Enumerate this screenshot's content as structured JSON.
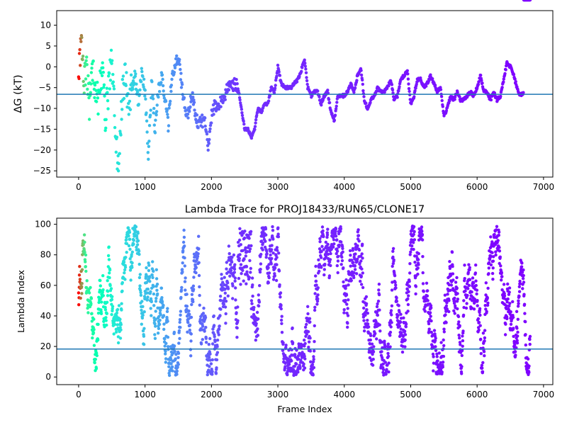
{
  "chart_data": [
    {
      "type": "scatter",
      "title": "",
      "xlabel": "",
      "ylabel": "ΔG (kT)",
      "xlim": [
        -330,
        7140
      ],
      "ylim": [
        -26.5,
        13.5
      ],
      "xticks": [
        "0",
        "1000",
        "2000",
        "3000",
        "4000",
        "5000",
        "6000",
        "7000"
      ],
      "yticks": [
        "10",
        "5",
        "0",
        "−5",
        "−10",
        "−15",
        "−20",
        "−25"
      ],
      "xtick_values": [
        0,
        1000,
        2000,
        3000,
        4000,
        5000,
        6000,
        7000
      ],
      "ytick_values": [
        10,
        5,
        0,
        -5,
        -10,
        -15,
        -20,
        -25
      ],
      "hline": -6.6,
      "hline_color": "#1f77b4",
      "colormap": "rainbow (red at early frames → purple at late frames)",
      "grid": false,
      "series": [
        {
          "trace_x": [
            0,
            40,
            80,
            120,
            160,
            200,
            250,
            300,
            350,
            400,
            450,
            500,
            550,
            600,
            650,
            700,
            750,
            800,
            850,
            900,
            950,
            1000,
            1050,
            1100,
            1150,
            1200,
            1250,
            1300,
            1350,
            1400,
            1450,
            1500,
            1550,
            1600,
            1650,
            1700,
            1750,
            1800,
            1850,
            1900,
            1950,
            2000,
            2050,
            2100,
            2150,
            2200,
            2250,
            2300,
            2350,
            2400,
            2450,
            2500,
            2550,
            2600,
            2650,
            2700,
            2750,
            2800,
            2850,
            2900,
            2950,
            3000,
            3050,
            3100,
            3150,
            3200,
            3250,
            3300,
            3350,
            3400,
            3450,
            3500,
            3550,
            3600,
            3650,
            3700,
            3750,
            3800,
            3850,
            3900,
            3950,
            4000,
            4050,
            4100,
            4150,
            4200,
            4250,
            4300,
            4350,
            4400,
            4450,
            4500,
            4550,
            4600,
            4650,
            4700,
            4750,
            4800,
            4850,
            4900,
            4950,
            5000,
            5050,
            5100,
            5150,
            5200,
            5250,
            5300,
            5350,
            5400,
            5450,
            5500,
            5550,
            5600,
            5650,
            5700,
            5750,
            5800,
            5850,
            5900,
            5950,
            6000,
            6050,
            6100,
            6150,
            6200,
            6250,
            6300,
            6350,
            6400,
            6450,
            6500,
            6550,
            6600,
            6650,
            6700,
            6750,
            6800
          ],
          "trace_y": [
            0,
            5,
            -3,
            0,
            -10,
            2,
            -5,
            -8,
            0,
            -12,
            -6,
            3,
            -15,
            -24,
            -8,
            -2,
            -10,
            -5,
            -2,
            -9,
            -1,
            -6,
            -22,
            -4,
            -15,
            -6,
            -2,
            -8,
            -14,
            -3,
            0,
            3,
            -4,
            -10,
            -12,
            -6,
            -11,
            -14,
            -13,
            -13,
            -19,
            -12,
            -9,
            -10,
            -8,
            -7,
            -5,
            -5,
            -4,
            -5,
            -10,
            -15,
            -15,
            -17,
            -15,
            -10,
            -11,
            -9,
            -9,
            -5,
            -6,
            0,
            -4,
            -5,
            -5,
            -5,
            -4,
            -3,
            -1,
            2,
            -5,
            -7,
            -6,
            -6,
            -9,
            -7,
            -6,
            -11,
            -13,
            -7,
            -7,
            -7,
            -6,
            -4,
            -6,
            -2,
            0,
            -8,
            -10,
            -8,
            -7,
            -5,
            -6,
            -6,
            -5,
            -3,
            -8,
            -7,
            -3,
            -2,
            -1,
            -9,
            -7,
            -3,
            -3,
            -5,
            -4,
            -2,
            -4,
            -6,
            -5,
            -12,
            -10,
            -7,
            -8,
            -6,
            -8,
            -8,
            -7,
            -6,
            -7,
            -5,
            -2,
            -6,
            -6,
            -8,
            -6,
            -8,
            -7,
            -3,
            1,
            0,
            -2,
            -5,
            -7,
            -6
          ]
        }
      ]
    },
    {
      "type": "scatter",
      "title": "Lambda Trace for PROJ18433/RUN65/CLONE17",
      "xlabel": "Frame Index",
      "ylabel": "Lambda Index",
      "xlim": [
        -330,
        7140
      ],
      "ylim": [
        -5,
        104
      ],
      "xticks": [
        "0",
        "1000",
        "2000",
        "3000",
        "4000",
        "5000",
        "6000",
        "7000"
      ],
      "yticks": [
        "0",
        "20",
        "40",
        "60",
        "80",
        "100"
      ],
      "xtick_values": [
        0,
        1000,
        2000,
        3000,
        4000,
        5000,
        6000,
        7000
      ],
      "ytick_values": [
        0,
        20,
        40,
        60,
        80,
        100
      ],
      "hline": 18.3,
      "hline_color": "#1f77b4",
      "colormap": "rainbow (red at early frames → purple at late frames)",
      "grid": false,
      "series": [
        {
          "frames_range": [
            0,
            6800
          ],
          "lambda_range": [
            1,
            99
          ],
          "dense_high_band": {
            "x_range": [
              2400,
              2600
            ],
            "y_range": [
              60,
              99
            ]
          }
        }
      ]
    }
  ]
}
